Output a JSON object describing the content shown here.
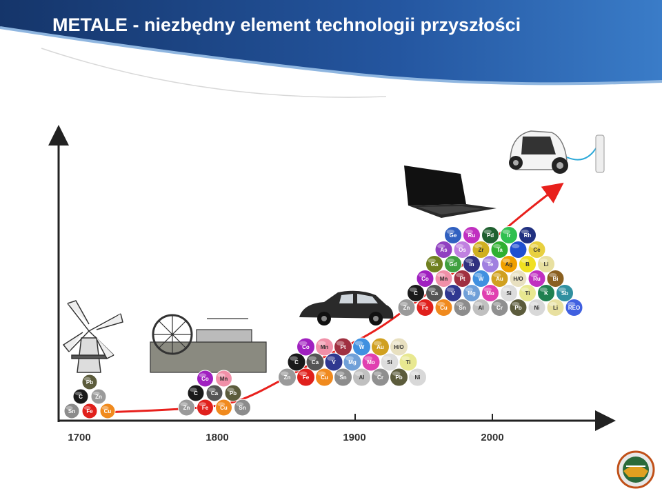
{
  "header": {
    "title": "METALE - niezbędny element technologii przyszłości"
  },
  "timeline": {
    "labels": [
      "1700",
      "1800",
      "1900",
      "2000"
    ],
    "groups": [
      {
        "rows": [
          [
            "Pb"
          ],
          [
            "C",
            "Zn"
          ],
          [
            "Sn",
            "Fe",
            "Cu"
          ]
        ]
      },
      {
        "rows": [
          [
            "Co",
            "Mn"
          ],
          [
            "C",
            "Ca",
            "Pb"
          ],
          [
            "Zn",
            "Fe",
            "Cu",
            "Sn"
          ]
        ]
      },
      {
        "rows": [
          [
            "Co",
            "Mn",
            "Pt",
            "W",
            "Au",
            "H/O"
          ],
          [
            "C",
            "Ca",
            "V",
            "Mg",
            "Mo",
            "Si",
            "Ti"
          ],
          [
            "Zn",
            "Fe",
            "Cu",
            "Sn",
            "Al",
            "Cr",
            "Pb",
            "Ni"
          ]
        ]
      },
      {
        "rows": [
          [
            "Ge",
            "Ru",
            "Pd",
            "Ir",
            "Rh"
          ],
          [
            "As",
            "Os",
            "Zr",
            "Ta",
            null,
            "Ce"
          ],
          [
            "Ga",
            "Gd",
            "In",
            "Te",
            "Ag",
            "B",
            "Li"
          ],
          [
            "Co",
            "Mn",
            "Pt",
            "W",
            "Au",
            "H/O",
            "Ru",
            "Bi"
          ],
          [
            "C",
            "Ca",
            "V",
            "Mg",
            "Mo",
            "Si",
            "Ti",
            "K",
            "Sb"
          ],
          [
            "Zn",
            "Fe",
            "Cu",
            "Sn",
            "Al",
            "Cr",
            "Pb",
            "Ni",
            "Li",
            "REO"
          ]
        ]
      }
    ],
    "element_colors": {
      "Sn": "#8c8c8c",
      "Fe": "#e0201c",
      "Cu": "#f08a1e",
      "C": "#1a1a1a",
      "Zn": "#9a9a9a",
      "Pb": "#5c5c3c",
      "Co": "#a020c0",
      "Mn": "#f090a8",
      "Ca": "#555555",
      "Pt": "#a03040",
      "W": "#4090e0",
      "Au": "#d0a020",
      "H/O": "#e8e0c0",
      "V": "#303890",
      "Mg": "#70a0d8",
      "Mo": "#e040b0",
      "Si": "#dcdcdc",
      "Ti": "#e8e890",
      "Al": "#c0c0c0",
      "Cr": "#909090",
      "Ni": "#d8d8d8",
      "Ge": "#3060c0",
      "Ru": "#c030c0",
      "Pd": "#206030",
      "Ir": "#30c050",
      "Rh": "#203080",
      "As": "#9040c0",
      "Os": "#c080e0",
      "Zr": "#d0b020",
      "Ta": "#30b030",
      "Ce": "#e8d040",
      "Ga": "#708020",
      "Gd": "#40a040",
      "In": "#303080",
      "Te": "#a080e0",
      "Ag": "#f0a000",
      "B": "#f0e020",
      "Li": "#e8e0a0",
      "Bi": "#8a6020",
      "K": "#208050",
      "Sb": "#3090a0",
      "REO": "#4060e0"
    },
    "unlabeled_color": "#2050d0"
  }
}
